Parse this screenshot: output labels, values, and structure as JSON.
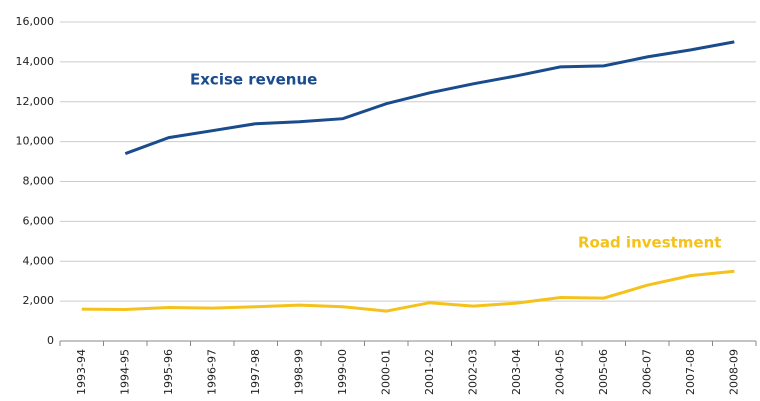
{
  "chart_data": {
    "type": "line",
    "categories": [
      "1993-94",
      "1994-95",
      "1995-96",
      "1996-97",
      "1997-98",
      "1998-99",
      "1999-00",
      "2000-01",
      "2001-02",
      "2002-03",
      "2003-04",
      "2004-05",
      "2005-06",
      "2006-07",
      "2007-08",
      "2008-09"
    ],
    "series": [
      {
        "name": "Excise revenue",
        "color": "#1a4b8c",
        "values": [
          null,
          9400,
          10200,
          10550,
          10900,
          11000,
          11150,
          11900,
          12450,
          12900,
          13300,
          13750,
          13800,
          14250,
          14600,
          15000
        ]
      },
      {
        "name": "Road investment",
        "color": "#f5c21b",
        "values": [
          1600,
          1580,
          1680,
          1650,
          1720,
          1800,
          1720,
          1500,
          1920,
          1750,
          1900,
          2180,
          2150,
          2800,
          3280,
          3500
        ]
      }
    ],
    "ylim": [
      0,
      16000
    ],
    "yticks": [
      0,
      {
        "value": 2000,
        "label": "2,000"
      },
      {
        "value": 4000,
        "label": "4,000"
      },
      {
        "value": 6000,
        "label": "6,000"
      },
      {
        "value": 8000,
        "label": "8,000"
      },
      {
        "value": 10000,
        "label": "10,000"
      },
      {
        "value": 12000,
        "label": "12,000"
      },
      {
        "value": 14000,
        "label": "14,000"
      },
      {
        "value": 16000,
        "label": "16,000"
      }
    ],
    "grid": true
  }
}
